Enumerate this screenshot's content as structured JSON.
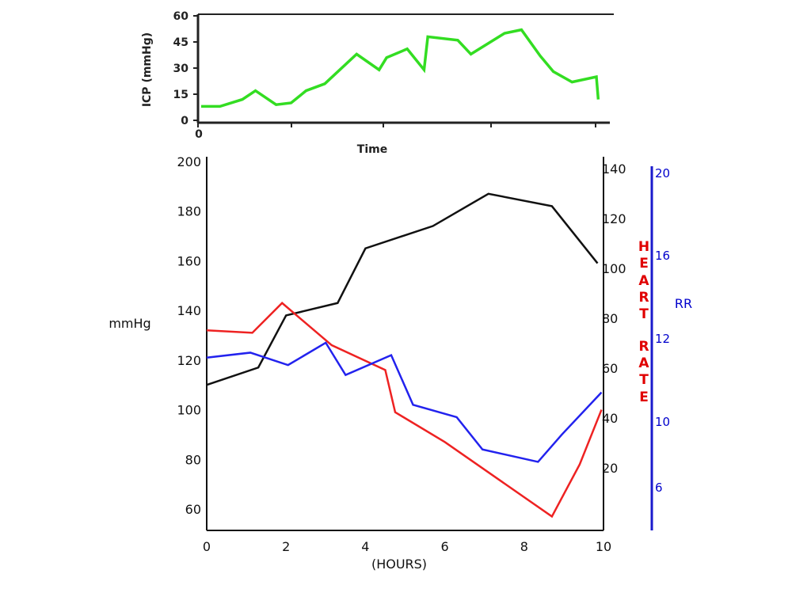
{
  "chart_data": [
    {
      "type": "line",
      "ylabel": "ICP (mmHg)",
      "xlabel": "Time",
      "x_ticks": [
        "0"
      ],
      "ylim": [
        0,
        60
      ],
      "y_ticks": [
        "0",
        "15",
        "30",
        "45",
        "60"
      ],
      "series": [
        {
          "color": "#33dd22",
          "x": [
            0,
            0.5,
            1.1,
            1.45,
            2.0,
            2.4,
            2.8,
            3.3,
            4.15,
            4.75,
            4.95,
            5.5,
            5.95,
            6.05,
            6.85,
            7.2,
            8.1,
            8.55,
            9.05,
            9.4,
            9.9,
            10.55,
            10.6
          ],
          "y": [
            8,
            8,
            12,
            17,
            9,
            10,
            17,
            21,
            38,
            29,
            36,
            41,
            29,
            48,
            46,
            38,
            50,
            52,
            37,
            28,
            22,
            25,
            12
          ]
        }
      ]
    },
    {
      "type": "line",
      "xlabel": "(HOURS)",
      "ylabel": "mmHg",
      "xlim": [
        0,
        10
      ],
      "x_ticks": [
        "0",
        "2",
        "4",
        "6",
        "8",
        "10"
      ],
      "ylim": [
        54,
        200
      ],
      "y_ticks": [
        "60",
        "80",
        "100",
        "120",
        "140",
        "160",
        "180",
        "200"
      ],
      "right_axes": [
        {
          "label_letters": [
            "H",
            "E",
            "A",
            "R",
            "T",
            "R",
            "A",
            "T",
            "E"
          ],
          "ticks": [
            "20",
            "40",
            "60",
            "80",
            "100",
            "120",
            "140"
          ],
          "color": "#e00000"
        },
        {
          "label": "RR",
          "ticks": [
            "6",
            "10",
            "12",
            "16",
            "20"
          ],
          "color": "#0000cc"
        }
      ],
      "series": [
        {
          "color": "#111111",
          "x": [
            0,
            1.3,
            2.0,
            3.3,
            4.0,
            5.7,
            7.1,
            8.7,
            9.85
          ],
          "y": [
            110,
            117,
            138,
            143,
            165,
            174,
            187,
            182,
            159
          ]
        },
        {
          "color": "#ee2222",
          "x": [
            0,
            1.15,
            1.9,
            3.15,
            4.5,
            4.75,
            6.0,
            8.7,
            9.4,
            9.95
          ],
          "y": [
            132,
            131,
            143,
            126,
            116,
            99,
            87,
            57,
            78,
            100
          ]
        },
        {
          "color": "#2222ee",
          "x": [
            0,
            1.1,
            2.05,
            3.0,
            3.5,
            4.65,
            5.2,
            6.3,
            6.95,
            8.35,
            8.95,
            9.95
          ],
          "y": [
            121,
            123,
            118,
            127,
            114,
            122,
            102,
            97,
            84,
            79,
            90,
            107
          ]
        }
      ]
    }
  ]
}
